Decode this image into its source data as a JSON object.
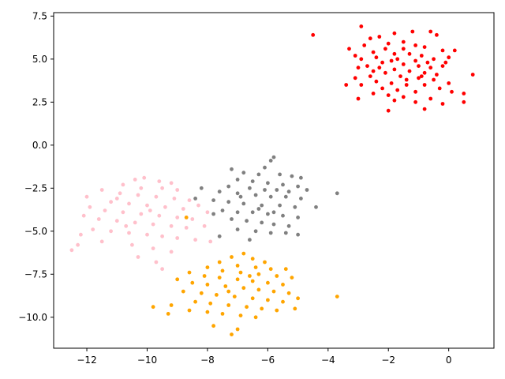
{
  "chart_data": {
    "type": "scatter",
    "title": "",
    "xlabel": "",
    "ylabel": "",
    "xlim": [
      -13.1,
      1.5
    ],
    "ylim": [
      -11.8,
      7.7
    ],
    "xticks": [
      -12,
      -10,
      -8,
      -6,
      -4,
      -2,
      0
    ],
    "xtick_labels": [
      "−12",
      "−10",
      "−8",
      "−6",
      "−4",
      "−2",
      "0"
    ],
    "yticks": [
      -10.0,
      -7.5,
      -5.0,
      -2.5,
      0.0,
      2.5,
      5.0,
      7.5
    ],
    "ytick_labels": [
      "−10.0",
      "−7.5",
      "−5.0",
      "−2.5",
      "0.0",
      "2.5",
      "5.0",
      "7.5"
    ],
    "grid": false,
    "legend": "none",
    "series": [
      {
        "color": "#ff0000",
        "points": [
          [
            -4.5,
            6.4
          ],
          [
            -2.9,
            6.9
          ],
          [
            -1.2,
            6.6
          ],
          [
            -0.6,
            6.6
          ],
          [
            -0.4,
            6.4
          ],
          [
            -1.8,
            6.5
          ],
          [
            -2.3,
            6.3
          ],
          [
            -2.6,
            6.2
          ],
          [
            -1.5,
            6.0
          ],
          [
            -2.0,
            5.9
          ],
          [
            -2.8,
            5.8
          ],
          [
            -3.3,
            5.6
          ],
          [
            -1.1,
            5.8
          ],
          [
            -0.8,
            5.7
          ],
          [
            -0.2,
            5.5
          ],
          [
            0.2,
            5.5
          ],
          [
            -1.5,
            5.6
          ],
          [
            -2.1,
            5.6
          ],
          [
            -2.5,
            5.4
          ],
          [
            -3.1,
            5.2
          ],
          [
            -1.8,
            5.3
          ],
          [
            -1.3,
            5.3
          ],
          [
            -0.9,
            5.2
          ],
          [
            -0.5,
            5.0
          ],
          [
            0.0,
            5.1
          ],
          [
            -2.4,
            5.1
          ],
          [
            -2.9,
            5.0
          ],
          [
            -1.7,
            5.0
          ],
          [
            -1.1,
            4.9
          ],
          [
            -0.7,
            4.8
          ],
          [
            -0.1,
            4.8
          ],
          [
            -2.2,
            4.8
          ],
          [
            -2.7,
            4.6
          ],
          [
            -3.0,
            4.5
          ],
          [
            -1.5,
            4.7
          ],
          [
            -1.0,
            4.6
          ],
          [
            -0.6,
            4.5
          ],
          [
            -0.2,
            4.6
          ],
          [
            0.8,
            4.1
          ],
          [
            -2.3,
            4.5
          ],
          [
            -1.8,
            4.4
          ],
          [
            -1.3,
            4.3
          ],
          [
            -0.8,
            4.2
          ],
          [
            -0.4,
            4.1
          ],
          [
            -2.1,
            4.2
          ],
          [
            -2.6,
            4.0
          ],
          [
            -3.1,
            3.9
          ],
          [
            -1.6,
            4.0
          ],
          [
            -1.0,
            3.9
          ],
          [
            -0.5,
            3.8
          ],
          [
            0.0,
            3.6
          ],
          [
            -2.4,
            3.7
          ],
          [
            -2.9,
            3.5
          ],
          [
            -3.4,
            3.5
          ],
          [
            -1.9,
            3.6
          ],
          [
            -1.4,
            3.5
          ],
          [
            -0.8,
            3.5
          ],
          [
            -0.3,
            3.3
          ],
          [
            -2.2,
            3.3
          ],
          [
            -1.7,
            3.2
          ],
          [
            -1.1,
            3.1
          ],
          [
            0.1,
            3.1
          ],
          [
            0.5,
            3.0
          ],
          [
            -2.5,
            3.0
          ],
          [
            -2.0,
            2.9
          ],
          [
            -1.5,
            2.8
          ],
          [
            -0.6,
            2.7
          ],
          [
            -3.0,
            2.7
          ],
          [
            -1.1,
            2.5
          ],
          [
            -0.2,
            2.4
          ],
          [
            0.5,
            2.5
          ],
          [
            -1.8,
            2.6
          ],
          [
            -2.0,
            2.0
          ],
          [
            -0.8,
            2.1
          ],
          [
            -1.4,
            3.8
          ],
          [
            -2.5,
            4.3
          ],
          [
            -1.9,
            4.9
          ],
          [
            -0.9,
            4.0
          ]
        ]
      },
      {
        "color": "#808080",
        "points": [
          [
            -5.8,
            -0.7
          ],
          [
            -5.9,
            -0.9
          ],
          [
            -6.1,
            -1.3
          ],
          [
            -7.2,
            -1.4
          ],
          [
            -6.8,
            -1.6
          ],
          [
            -6.3,
            -1.7
          ],
          [
            -5.6,
            -1.7
          ],
          [
            -5.2,
            -1.8
          ],
          [
            -4.9,
            -1.9
          ],
          [
            -7.0,
            -2.0
          ],
          [
            -6.5,
            -2.1
          ],
          [
            -6.0,
            -2.2
          ],
          [
            -5.5,
            -2.3
          ],
          [
            -5.0,
            -2.4
          ],
          [
            -7.3,
            -2.4
          ],
          [
            -6.6,
            -2.5
          ],
          [
            -6.1,
            -2.6
          ],
          [
            -5.7,
            -2.6
          ],
          [
            -5.3,
            -2.7
          ],
          [
            -4.7,
            -2.6
          ],
          [
            -7.6,
            -2.7
          ],
          [
            -7.0,
            -2.8
          ],
          [
            -6.4,
            -2.9
          ],
          [
            -5.9,
            -3.0
          ],
          [
            -5.4,
            -3.0
          ],
          [
            -4.9,
            -3.1
          ],
          [
            -7.8,
            -3.2
          ],
          [
            -7.3,
            -3.3
          ],
          [
            -6.8,
            -3.4
          ],
          [
            -6.2,
            -3.5
          ],
          [
            -5.6,
            -3.5
          ],
          [
            -5.1,
            -3.6
          ],
          [
            -4.4,
            -3.6
          ],
          [
            -7.5,
            -3.8
          ],
          [
            -7.0,
            -3.9
          ],
          [
            -6.5,
            -3.9
          ],
          [
            -6.0,
            -4.0
          ],
          [
            -5.5,
            -4.1
          ],
          [
            -5.0,
            -4.2
          ],
          [
            -7.2,
            -4.3
          ],
          [
            -6.7,
            -4.4
          ],
          [
            -6.2,
            -4.5
          ],
          [
            -5.8,
            -4.6
          ],
          [
            -5.3,
            -4.7
          ],
          [
            -7.0,
            -4.9
          ],
          [
            -6.4,
            -5.0
          ],
          [
            -5.9,
            -5.1
          ],
          [
            -5.4,
            -5.1
          ],
          [
            -7.6,
            -5.3
          ],
          [
            -5.0,
            -5.2
          ],
          [
            -6.6,
            -5.5
          ],
          [
            -3.7,
            -2.8
          ],
          [
            -8.2,
            -2.5
          ],
          [
            -8.4,
            -3.1
          ],
          [
            -6.9,
            -3.0
          ],
          [
            -6.3,
            -3.7
          ],
          [
            -5.8,
            -3.9
          ],
          [
            -7.8,
            -4.0
          ]
        ]
      },
      {
        "color": "#ffc0cb",
        "points": [
          [
            -10.1,
            -1.9
          ],
          [
            -10.4,
            -2.0
          ],
          [
            -9.6,
            -2.1
          ],
          [
            -9.2,
            -2.2
          ],
          [
            -10.8,
            -2.3
          ],
          [
            -10.2,
            -2.5
          ],
          [
            -9.5,
            -2.5
          ],
          [
            -9.0,
            -2.6
          ],
          [
            -11.5,
            -2.6
          ],
          [
            -10.9,
            -2.8
          ],
          [
            -10.3,
            -2.9
          ],
          [
            -9.7,
            -3.0
          ],
          [
            -9.1,
            -3.1
          ],
          [
            -8.6,
            -3.2
          ],
          [
            -12.0,
            -3.0
          ],
          [
            -11.2,
            -3.3
          ],
          [
            -10.6,
            -3.4
          ],
          [
            -10.0,
            -3.5
          ],
          [
            -9.4,
            -3.6
          ],
          [
            -8.8,
            -3.7
          ],
          [
            -8.3,
            -3.5
          ],
          [
            -11.9,
            -3.6
          ],
          [
            -11.4,
            -3.8
          ],
          [
            -10.8,
            -3.9
          ],
          [
            -10.2,
            -4.0
          ],
          [
            -9.6,
            -4.1
          ],
          [
            -9.0,
            -4.2
          ],
          [
            -8.5,
            -4.3
          ],
          [
            -8.0,
            -3.9
          ],
          [
            -12.1,
            -4.1
          ],
          [
            -11.6,
            -4.3
          ],
          [
            -11.0,
            -4.4
          ],
          [
            -10.4,
            -4.5
          ],
          [
            -9.8,
            -4.6
          ],
          [
            -9.2,
            -4.7
          ],
          [
            -8.7,
            -4.8
          ],
          [
            -8.1,
            -4.7
          ],
          [
            -11.8,
            -4.9
          ],
          [
            -11.2,
            -5.0
          ],
          [
            -10.6,
            -5.1
          ],
          [
            -10.0,
            -5.2
          ],
          [
            -9.5,
            -5.3
          ],
          [
            -9.0,
            -5.4
          ],
          [
            -8.4,
            -5.5
          ],
          [
            -7.9,
            -5.6
          ],
          [
            -12.2,
            -5.2
          ],
          [
            -11.5,
            -5.6
          ],
          [
            -10.5,
            -5.8
          ],
          [
            -9.8,
            -6.0
          ],
          [
            -9.2,
            -6.2
          ],
          [
            -12.5,
            -6.1
          ],
          [
            -12.3,
            -5.8
          ],
          [
            -10.3,
            -6.5
          ],
          [
            -9.7,
            -6.8
          ],
          [
            -9.5,
            -7.2
          ],
          [
            -8.7,
            -4.2
          ],
          [
            -11.0,
            -3.1
          ],
          [
            -9.9,
            -3.8
          ],
          [
            -10.7,
            -4.7
          ]
        ]
      },
      {
        "color": "#ffa500",
        "points": [
          [
            -6.8,
            -6.3
          ],
          [
            -7.2,
            -6.5
          ],
          [
            -6.5,
            -6.6
          ],
          [
            -6.1,
            -6.8
          ],
          [
            -7.6,
            -6.8
          ],
          [
            -7.0,
            -7.0
          ],
          [
            -6.4,
            -7.1
          ],
          [
            -5.9,
            -7.2
          ],
          [
            -5.4,
            -7.2
          ],
          [
            -8.0,
            -7.1
          ],
          [
            -7.5,
            -7.3
          ],
          [
            -6.9,
            -7.4
          ],
          [
            -6.3,
            -7.5
          ],
          [
            -5.7,
            -7.6
          ],
          [
            -5.2,
            -7.7
          ],
          [
            -8.6,
            -7.4
          ],
          [
            -8.1,
            -7.6
          ],
          [
            -7.6,
            -7.7
          ],
          [
            -7.0,
            -7.8
          ],
          [
            -6.5,
            -7.9
          ],
          [
            -6.0,
            -8.0
          ],
          [
            -5.5,
            -8.1
          ],
          [
            -9.0,
            -7.8
          ],
          [
            -8.5,
            -8.0
          ],
          [
            -8.0,
            -8.1
          ],
          [
            -7.4,
            -8.2
          ],
          [
            -6.8,
            -8.3
          ],
          [
            -6.3,
            -8.4
          ],
          [
            -5.8,
            -8.5
          ],
          [
            -5.3,
            -8.6
          ],
          [
            -8.8,
            -8.5
          ],
          [
            -8.2,
            -8.6
          ],
          [
            -7.7,
            -8.7
          ],
          [
            -7.1,
            -8.8
          ],
          [
            -6.5,
            -8.9
          ],
          [
            -6.0,
            -9.0
          ],
          [
            -5.5,
            -9.1
          ],
          [
            -5.0,
            -8.9
          ],
          [
            -8.4,
            -9.1
          ],
          [
            -7.9,
            -9.2
          ],
          [
            -7.3,
            -9.3
          ],
          [
            -6.7,
            -9.4
          ],
          [
            -6.2,
            -9.5
          ],
          [
            -5.7,
            -9.6
          ],
          [
            -9.2,
            -9.3
          ],
          [
            -8.6,
            -9.6
          ],
          [
            -8.0,
            -9.7
          ],
          [
            -7.5,
            -9.8
          ],
          [
            -6.9,
            -9.9
          ],
          [
            -6.4,
            -10.0
          ],
          [
            -9.8,
            -9.4
          ],
          [
            -9.3,
            -9.8
          ],
          [
            -7.8,
            -10.5
          ],
          [
            -7.0,
            -10.7
          ],
          [
            -7.2,
            -11.0
          ],
          [
            -5.1,
            -9.5
          ],
          [
            -3.7,
            -8.8
          ],
          [
            -8.7,
            -4.2
          ],
          [
            -7.3,
            -8.5
          ],
          [
            -6.6,
            -7.6
          ]
        ]
      }
    ]
  }
}
